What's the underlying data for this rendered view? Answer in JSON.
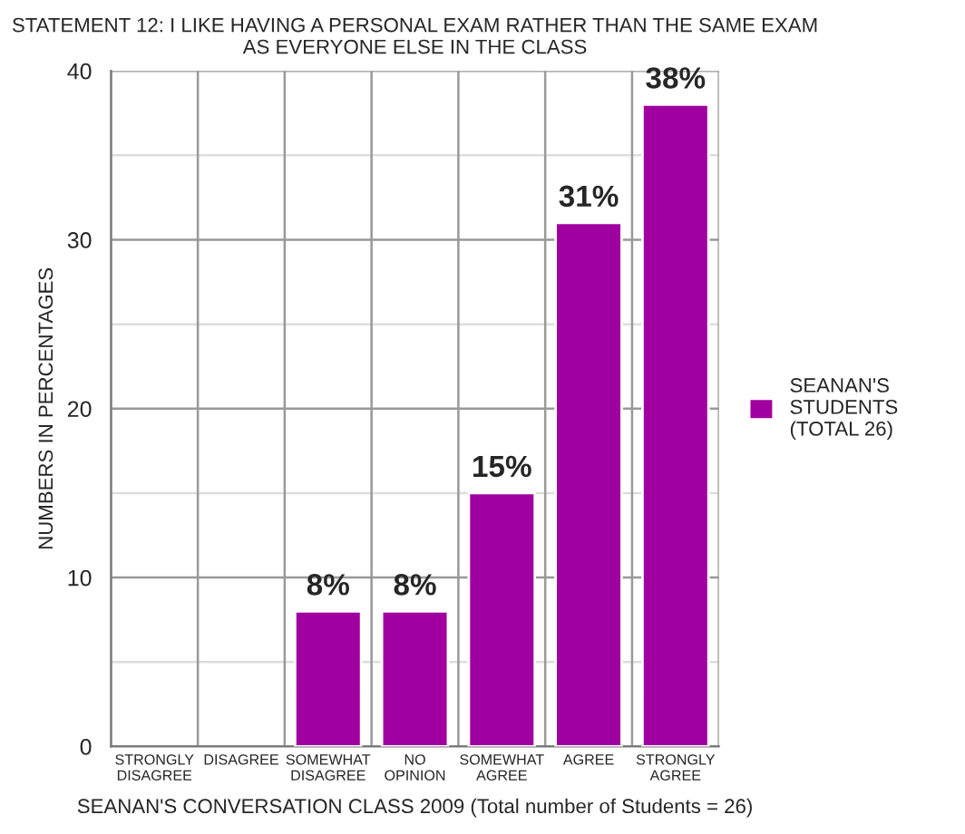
{
  "chart_data": {
    "type": "bar",
    "title": "STATEMENT 12: I LIKE HAVING A PERSONAL EXAM RATHER THAN THE SAME EXAM AS EVERYONE ELSE IN THE CLASS",
    "xlabel": "SEANAN'S CONVERSATION CLASS 2009 (Total number of Students = 26)",
    "ylabel": "NUMBERS IN PERCENTAGES",
    "categories": [
      "STRONGLY\nDISAGREE",
      "DISAGREE",
      "SOMEWHAT\nDISAGREE",
      "NO\nOPINION",
      "SOMEWHAT\nAGREE",
      "AGREE",
      "STRONGLY\nAGREE"
    ],
    "series": [
      {
        "name": "SEANAN'S\nSTUDENTS\n(TOTAL 26)",
        "color": "#a000a0",
        "values": [
          0,
          0,
          8,
          8,
          15,
          31,
          38
        ],
        "value_labels": [
          null,
          null,
          "8%",
          "8%",
          "15%",
          "31%",
          "38%"
        ]
      }
    ],
    "ylim": [
      0,
      40
    ],
    "yticks": [
      0,
      {
        "value": 5,
        "label": null
      },
      10,
      {
        "value": 15,
        "label": null
      },
      20,
      {
        "value": 25,
        "label": null
      },
      30,
      {
        "value": 35,
        "label": null
      },
      40
    ],
    "grid": true,
    "legend": "right"
  }
}
